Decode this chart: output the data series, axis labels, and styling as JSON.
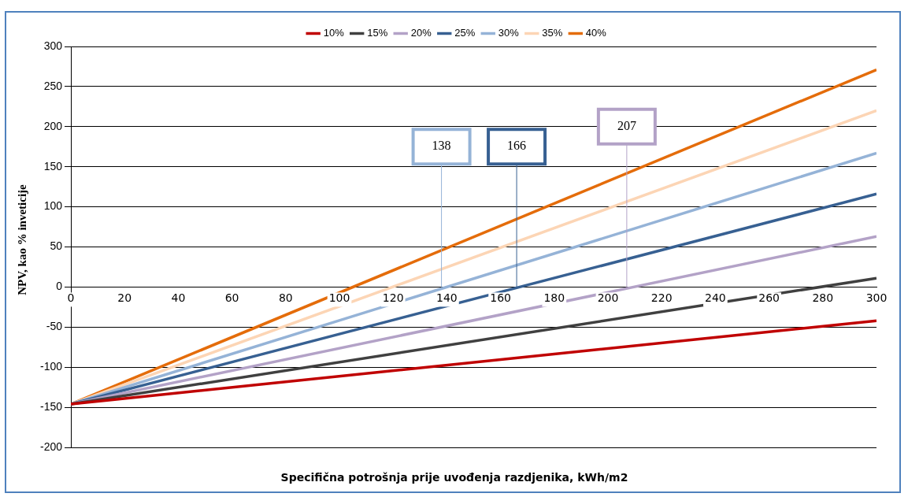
{
  "chart_data": {
    "type": "line",
    "xlabel": "Specifična  potrošnja prije uvođenja  razdjenika, kWh/m2",
    "ylabel": "NPV, kao % inveticije",
    "x": [
      0,
      300
    ],
    "series": [
      {
        "name": "10%",
        "color": "#c00000",
        "values": [
          -146,
          -42
        ]
      },
      {
        "name": "15%",
        "color": "#404040",
        "values": [
          -146,
          11
        ]
      },
      {
        "name": "20%",
        "color": "#b3a2c7",
        "values": [
          -146,
          63
        ]
      },
      {
        "name": "25%",
        "color": "#376092",
        "values": [
          -146,
          116
        ]
      },
      {
        "name": "30%",
        "color": "#95b3d7",
        "values": [
          -146,
          167
        ]
      },
      {
        "name": "35%",
        "color": "#fcd5b5",
        "values": [
          -146,
          220
        ]
      },
      {
        "name": "40%",
        "color": "#e46c0a",
        "values": [
          -146,
          271
        ]
      }
    ],
    "xlim": [
      0,
      300
    ],
    "xticks": [
      0,
      20,
      40,
      60,
      80,
      100,
      120,
      140,
      160,
      180,
      200,
      220,
      240,
      260,
      280,
      300
    ],
    "ylim": [
      -200,
      300
    ],
    "yticks": [
      -200,
      -150,
      -100,
      -50,
      0,
      50,
      100,
      150,
      200,
      250,
      300
    ],
    "ref_lines": [
      {
        "axis": "x",
        "value": 138,
        "label": "138",
        "color": "#95b3d7"
      },
      {
        "axis": "x",
        "value": 166,
        "label": "166",
        "color": "#376092"
      },
      {
        "axis": "x",
        "value": 207,
        "label": "207",
        "color": "#b3a2c7"
      }
    ],
    "grid": "y",
    "legend": "top",
    "marker": "none",
    "line_style": "solid"
  }
}
